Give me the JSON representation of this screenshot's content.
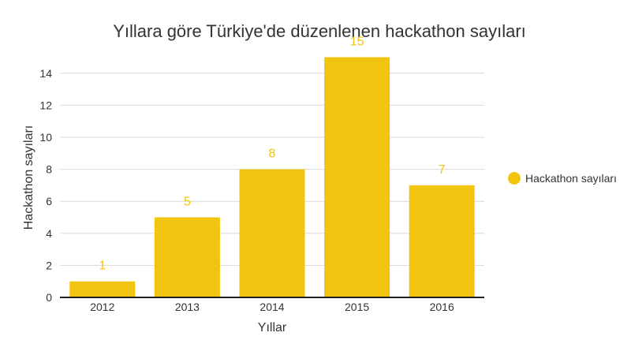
{
  "chart_data": {
    "type": "bar",
    "title": "Yıllara göre Türkiye'de düzenlenen hackathon sayıları",
    "xlabel": "Yıllar",
    "ylabel": "Hackathon sayıları",
    "categories": [
      "2012",
      "2013",
      "2014",
      "2015",
      "2016"
    ],
    "series": [
      {
        "name": "Hackathon sayıları",
        "values": [
          1,
          5,
          8,
          15,
          7
        ],
        "color": "#f1c40f"
      }
    ],
    "ylim": [
      0,
      15
    ],
    "yticks": [
      0,
      2,
      4,
      6,
      8,
      10,
      12,
      14
    ],
    "grid": true,
    "legend": "right",
    "data_labels": true,
    "label_color": "#f1c40f"
  }
}
